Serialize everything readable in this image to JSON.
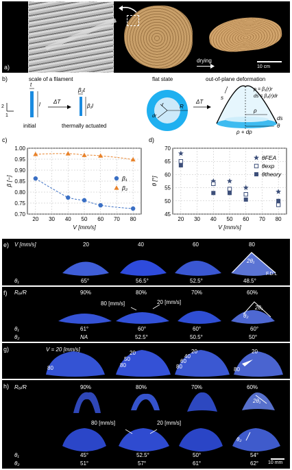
{
  "panel_a": {
    "label": "a)",
    "drying_label": "drying",
    "scale_label": "10 cm"
  },
  "panel_b": {
    "label": "b)",
    "title_filament": "scale of a filament",
    "title_flat": "flat state",
    "title_deform": "out-of-plane deformation",
    "lbl_t": "t",
    "lbl_l": "l",
    "lbl_dT1": "ΔT",
    "lbl_dT2": "ΔT",
    "lbl_b2t": "β₂t",
    "lbl_b1l": "β₁l",
    "lbl_initial": "initial",
    "lbl_thermal": "thermally actuated",
    "lbl_r": "r",
    "lbl_R": "R",
    "lbl_dr": "dr",
    "eq1": "ρ = β₁(r)r",
    "eq2": "ds = β₂(r)dr",
    "lbl_s": "s",
    "lbl_rho": "ρ",
    "lbl_ds": "ds",
    "lbl_theta": "θ",
    "lbl_rhodrho": "ρ + dρ",
    "axis_2": "2",
    "axis_1": "1"
  },
  "chart_data": [
    {
      "panel": "c)",
      "type": "scatter",
      "xlabel": "V [mm/s]",
      "ylabel": "β [−]",
      "x": [
        20,
        40,
        50,
        60,
        80
      ],
      "xticks": [
        "20",
        "30",
        "40",
        "50",
        "60",
        "70",
        "80"
      ],
      "ylim": [
        0.7,
        1.0
      ],
      "yticks": [
        "0.70",
        "0.75",
        "0.80",
        "0.85",
        "0.90",
        "0.95",
        "1.00"
      ],
      "grid": true,
      "legend": "center-right",
      "series": [
        {
          "name": "β₁",
          "values": [
            0.862,
            0.775,
            0.763,
            0.74,
            0.725
          ],
          "color": "#3a6fc4",
          "marker": "circle"
        },
        {
          "name": "β₂",
          "values": [
            0.972,
            0.975,
            0.968,
            0.965,
            0.948
          ],
          "color": "#e8822a",
          "marker": "triangle"
        }
      ]
    },
    {
      "panel": "d)",
      "type": "scatter",
      "xlabel": "V [mm/s]",
      "ylabel": "θ [°]",
      "x": [
        20,
        40,
        50,
        60,
        80
      ],
      "xticks": [
        "20",
        "30",
        "40",
        "50",
        "60",
        "70",
        "80"
      ],
      "ylim": [
        45,
        70
      ],
      "yticks": [
        "45",
        "50",
        "55",
        "60",
        "65",
        "70"
      ],
      "grid": true,
      "legend": "right",
      "series": [
        {
          "name": "θFEA",
          "values": [
            68,
            57.5,
            57.5,
            55,
            53.5
          ],
          "color": "#3d4f7a",
          "marker": "star"
        },
        {
          "name": "θexp",
          "values": [
            65,
            56.5,
            54.5,
            52.5,
            48.5
          ],
          "color": "#3d4f7a",
          "marker": "open-square"
        },
        {
          "name": "θtheory",
          "values": [
            63.5,
            53,
            53,
            50.5,
            50
          ],
          "color": "#3d4f7a",
          "marker": "square"
        }
      ]
    }
  ],
  "panel_e": {
    "label": "e)",
    "header": "V [mm/s]",
    "cols": [
      "20",
      "40",
      "60",
      "80"
    ],
    "row_label": "θ₁",
    "thetas": [
      "65°",
      "56.5°",
      "52.5°",
      "48.5°"
    ],
    "fdl": "F.D.L",
    "two_theta": "2θ₁"
  },
  "panel_f": {
    "label": "f)",
    "header": "Rₑᵢ/R",
    "cols": [
      "90%",
      "80%",
      "70%",
      "60%"
    ],
    "speed_a": "80 [mm/s]",
    "speed_b": "20 [mm/s]",
    "row1_label": "θ₁",
    "row1": [
      "61°",
      "60°",
      "60°",
      "60°"
    ],
    "row2_label": "θ₂",
    "row2": [
      "NA",
      "52.5°",
      "50.5°",
      "50°"
    ],
    "two_theta": "2θ₁",
    "theta2": "θ₂"
  },
  "panel_g": {
    "label": "g)",
    "v_label": "V =  20  [mm/s]",
    "c1": [
      "80"
    ],
    "c2": [
      "20",
      "50",
      "80"
    ],
    "c3": [
      "20",
      "40",
      "60",
      "80"
    ],
    "c4": [
      "20",
      "80"
    ]
  },
  "panel_h": {
    "label": "h)",
    "header": "Rₑᵢ/R",
    "cols": [
      "90%",
      "80%",
      "70%",
      "60%"
    ],
    "speed_a": "80 [mm/s]",
    "speed_b": "20 [mm/s]",
    "row1_label": "θ₁",
    "row1": [
      "45°",
      "52.5°",
      "50°",
      "54°"
    ],
    "row2_label": "θ₂",
    "row2": [
      "51°",
      "57°",
      "61°",
      "62°"
    ],
    "two_theta": "2θ₁",
    "theta2": "θ₂",
    "scale": "10 mm"
  },
  "colors": {
    "blue_print": "#2b4bd0",
    "panel_bg": "#000000",
    "wood": "#b88a55"
  }
}
